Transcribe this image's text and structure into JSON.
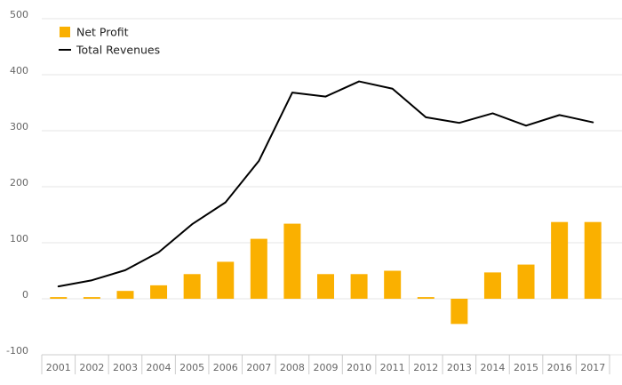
{
  "chart_data": {
    "type": "bar",
    "title": "",
    "xlabel": "",
    "ylabel": "",
    "ylim": [
      -100,
      500
    ],
    "yticks": [
      -100,
      0,
      100,
      200,
      300,
      400,
      500
    ],
    "grid": true,
    "legend_position": "top-left",
    "categories": [
      "2001",
      "2002",
      "2003",
      "2004",
      "2005",
      "2006",
      "2007",
      "2008",
      "2009",
      "2010",
      "2011",
      "2012",
      "2013",
      "2014",
      "2015",
      "2016",
      "2017"
    ],
    "series": [
      {
        "name": "Net Profit",
        "type": "bar",
        "color": "#FAB000",
        "values": [
          3,
          3,
          14,
          24,
          44,
          66,
          107,
          134,
          44,
          44,
          50,
          3,
          -45,
          47,
          61,
          137,
          137
        ]
      },
      {
        "name": "Total Revenues",
        "type": "line",
        "color": "#000000",
        "values": [
          22,
          33,
          51,
          83,
          133,
          172,
          246,
          368,
          361,
          388,
          375,
          324,
          314,
          331,
          309,
          328,
          315
        ]
      }
    ]
  },
  "legend": {
    "items": [
      {
        "label": "Net Profit",
        "kind": "swatch",
        "color": "#FAB000"
      },
      {
        "label": "Total Revenues",
        "kind": "line",
        "color": "#000000"
      }
    ]
  },
  "colors": {
    "grid": "#E6E6E6",
    "axis": "#CCCCCC",
    "tick_text": "#666666"
  }
}
